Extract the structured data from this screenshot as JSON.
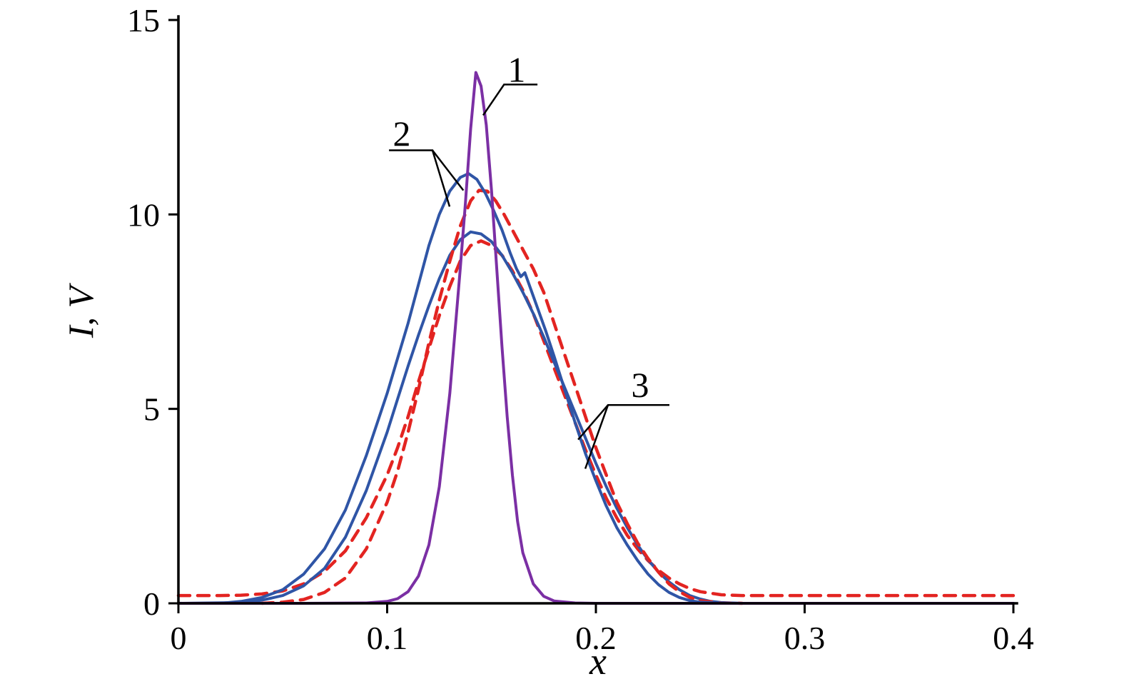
{
  "figure": {
    "background": "#ffffff",
    "axis_color": "#000000"
  },
  "chart_data": {
    "type": "line",
    "title": "",
    "xlabel": "x",
    "ylabel": "I, V",
    "xlim": [
      0,
      0.4
    ],
    "ylim": [
      0,
      15
    ],
    "xticks": [
      0,
      0.1,
      0.2,
      0.3,
      0.4
    ],
    "xtick_labels": [
      "0",
      "0.1",
      "0.2",
      "0.3",
      "0.4"
    ],
    "yticks": [
      0,
      5,
      10,
      15
    ],
    "ytick_labels": [
      "0",
      "5",
      "10",
      "15"
    ],
    "grid": false,
    "legend": "none",
    "series": [
      {
        "name": "curve-1-narrow-peak",
        "annotation_label": "1",
        "color": "#7b2fa4",
        "style": "solid",
        "width": 4,
        "points": [
          [
            0,
            0
          ],
          [
            0.06,
            0
          ],
          [
            0.09,
            0.01
          ],
          [
            0.1,
            0.05
          ],
          [
            0.105,
            0.12
          ],
          [
            0.11,
            0.3
          ],
          [
            0.115,
            0.7
          ],
          [
            0.12,
            1.5
          ],
          [
            0.125,
            3.0
          ],
          [
            0.13,
            5.4
          ],
          [
            0.135,
            8.6
          ],
          [
            0.1375,
            10.3
          ],
          [
            0.14,
            12.2
          ],
          [
            0.1425,
            13.65
          ],
          [
            0.145,
            13.3
          ],
          [
            0.1475,
            12.3
          ],
          [
            0.15,
            10.6
          ],
          [
            0.1525,
            8.6
          ],
          [
            0.155,
            6.6
          ],
          [
            0.1575,
            4.8
          ],
          [
            0.16,
            3.3
          ],
          [
            0.1625,
            2.1
          ],
          [
            0.165,
            1.3
          ],
          [
            0.17,
            0.5
          ],
          [
            0.175,
            0.18
          ],
          [
            0.18,
            0.06
          ],
          [
            0.19,
            0.01
          ],
          [
            0.2,
            0
          ],
          [
            0.4,
            0
          ]
        ]
      },
      {
        "name": "curve-2-solid-blue",
        "annotation_label": "2",
        "color": "#2f55a6",
        "style": "solid",
        "width": 4,
        "points": [
          [
            0,
            0
          ],
          [
            0.02,
            0
          ],
          [
            0.03,
            0.05
          ],
          [
            0.04,
            0.15
          ],
          [
            0.05,
            0.35
          ],
          [
            0.06,
            0.75
          ],
          [
            0.07,
            1.4
          ],
          [
            0.08,
            2.4
          ],
          [
            0.09,
            3.8
          ],
          [
            0.095,
            4.6
          ],
          [
            0.1,
            5.4
          ],
          [
            0.105,
            6.3
          ],
          [
            0.11,
            7.2
          ],
          [
            0.115,
            8.2
          ],
          [
            0.12,
            9.2
          ],
          [
            0.125,
            10.0
          ],
          [
            0.13,
            10.6
          ],
          [
            0.135,
            10.95
          ],
          [
            0.139,
            11.05
          ],
          [
            0.143,
            10.9
          ],
          [
            0.147,
            10.55
          ],
          [
            0.151,
            10.1
          ],
          [
            0.155,
            9.6
          ],
          [
            0.159,
            9.0
          ],
          [
            0.162,
            8.6
          ],
          [
            0.164,
            8.4
          ],
          [
            0.166,
            8.5
          ],
          [
            0.168,
            8.2
          ],
          [
            0.172,
            7.6
          ],
          [
            0.176,
            7.0
          ],
          [
            0.18,
            6.35
          ],
          [
            0.185,
            5.5
          ],
          [
            0.19,
            4.65
          ],
          [
            0.195,
            3.85
          ],
          [
            0.2,
            3.15
          ],
          [
            0.205,
            2.5
          ],
          [
            0.21,
            1.95
          ],
          [
            0.215,
            1.5
          ],
          [
            0.22,
            1.1
          ],
          [
            0.225,
            0.75
          ],
          [
            0.23,
            0.48
          ],
          [
            0.235,
            0.28
          ],
          [
            0.24,
            0.15
          ],
          [
            0.245,
            0.07
          ],
          [
            0.25,
            0.03
          ],
          [
            0.26,
            0.01
          ],
          [
            0.27,
            0
          ],
          [
            0.4,
            0
          ]
        ]
      },
      {
        "name": "curve-2-dashed-red",
        "annotation_label": "2",
        "color": "#e32421",
        "style": "dashed",
        "width": 4.5,
        "points": [
          [
            0.04,
            0
          ],
          [
            0.05,
            0.03
          ],
          [
            0.06,
            0.1
          ],
          [
            0.07,
            0.28
          ],
          [
            0.08,
            0.65
          ],
          [
            0.09,
            1.4
          ],
          [
            0.1,
            2.6
          ],
          [
            0.105,
            3.4
          ],
          [
            0.11,
            4.4
          ],
          [
            0.115,
            5.5
          ],
          [
            0.12,
            6.7
          ],
          [
            0.125,
            7.8
          ],
          [
            0.13,
            8.8
          ],
          [
            0.135,
            9.7
          ],
          [
            0.14,
            10.35
          ],
          [
            0.144,
            10.62
          ],
          [
            0.148,
            10.6
          ],
          [
            0.152,
            10.35
          ],
          [
            0.156,
            10.0
          ],
          [
            0.16,
            9.6
          ],
          [
            0.165,
            9.1
          ],
          [
            0.17,
            8.6
          ],
          [
            0.175,
            8.0
          ],
          [
            0.18,
            7.2
          ],
          [
            0.185,
            6.4
          ],
          [
            0.19,
            5.6
          ],
          [
            0.195,
            4.8
          ],
          [
            0.2,
            4.0
          ],
          [
            0.205,
            3.3
          ],
          [
            0.21,
            2.6
          ],
          [
            0.215,
            2.05
          ],
          [
            0.22,
            1.55
          ],
          [
            0.225,
            1.15
          ],
          [
            0.23,
            0.8
          ],
          [
            0.235,
            0.5
          ],
          [
            0.24,
            0.3
          ],
          [
            0.245,
            0.15
          ],
          [
            0.25,
            0.07
          ],
          [
            0.26,
            0.01
          ],
          [
            0.27,
            0
          ]
        ]
      },
      {
        "name": "curve-3-solid-blue",
        "annotation_label": "3",
        "color": "#2f55a6",
        "style": "solid",
        "width": 4,
        "points": [
          [
            0,
            0
          ],
          [
            0.03,
            0.02
          ],
          [
            0.04,
            0.08
          ],
          [
            0.05,
            0.2
          ],
          [
            0.06,
            0.45
          ],
          [
            0.07,
            0.9
          ],
          [
            0.08,
            1.7
          ],
          [
            0.09,
            2.9
          ],
          [
            0.1,
            4.4
          ],
          [
            0.105,
            5.25
          ],
          [
            0.11,
            6.1
          ],
          [
            0.115,
            6.9
          ],
          [
            0.12,
            7.65
          ],
          [
            0.125,
            8.35
          ],
          [
            0.13,
            8.95
          ],
          [
            0.135,
            9.35
          ],
          [
            0.14,
            9.55
          ],
          [
            0.145,
            9.5
          ],
          [
            0.15,
            9.3
          ],
          [
            0.155,
            8.95
          ],
          [
            0.16,
            8.5
          ],
          [
            0.165,
            8.0
          ],
          [
            0.17,
            7.45
          ],
          [
            0.175,
            6.85
          ],
          [
            0.18,
            6.2
          ],
          [
            0.185,
            5.55
          ],
          [
            0.19,
            4.9
          ],
          [
            0.195,
            4.25
          ],
          [
            0.2,
            3.6
          ],
          [
            0.205,
            3.0
          ],
          [
            0.21,
            2.45
          ],
          [
            0.215,
            1.95
          ],
          [
            0.22,
            1.5
          ],
          [
            0.225,
            1.12
          ],
          [
            0.23,
            0.8
          ],
          [
            0.235,
            0.55
          ],
          [
            0.24,
            0.35
          ],
          [
            0.245,
            0.2
          ],
          [
            0.25,
            0.11
          ],
          [
            0.255,
            0.05
          ],
          [
            0.26,
            0.02
          ],
          [
            0.27,
            0
          ],
          [
            0.4,
            0
          ]
        ]
      },
      {
        "name": "curve-3-dashed-red",
        "annotation_label": "3",
        "color": "#e32421",
        "style": "dashed",
        "width": 4.5,
        "points": [
          [
            0,
            0.2
          ],
          [
            0.02,
            0.2
          ],
          [
            0.03,
            0.21
          ],
          [
            0.04,
            0.24
          ],
          [
            0.05,
            0.32
          ],
          [
            0.06,
            0.5
          ],
          [
            0.07,
            0.82
          ],
          [
            0.08,
            1.35
          ],
          [
            0.09,
            2.2
          ],
          [
            0.1,
            3.3
          ],
          [
            0.105,
            4.0
          ],
          [
            0.11,
            4.8
          ],
          [
            0.115,
            5.7
          ],
          [
            0.12,
            6.55
          ],
          [
            0.125,
            7.4
          ],
          [
            0.13,
            8.15
          ],
          [
            0.135,
            8.8
          ],
          [
            0.14,
            9.2
          ],
          [
            0.145,
            9.32
          ],
          [
            0.15,
            9.2
          ],
          [
            0.155,
            8.95
          ],
          [
            0.16,
            8.55
          ],
          [
            0.165,
            8.05
          ],
          [
            0.17,
            7.45
          ],
          [
            0.175,
            6.75
          ],
          [
            0.18,
            6.05
          ],
          [
            0.185,
            5.35
          ],
          [
            0.19,
            4.65
          ],
          [
            0.195,
            3.95
          ],
          [
            0.2,
            3.3
          ],
          [
            0.205,
            2.7
          ],
          [
            0.21,
            2.2
          ],
          [
            0.215,
            1.75
          ],
          [
            0.22,
            1.4
          ],
          [
            0.225,
            1.1
          ],
          [
            0.23,
            0.85
          ],
          [
            0.235,
            0.65
          ],
          [
            0.24,
            0.5
          ],
          [
            0.245,
            0.38
          ],
          [
            0.25,
            0.3
          ],
          [
            0.26,
            0.22
          ],
          [
            0.27,
            0.2
          ],
          [
            0.3,
            0.2
          ],
          [
            0.33,
            0.2
          ],
          [
            0.36,
            0.2
          ],
          [
            0.4,
            0.2
          ]
        ]
      }
    ],
    "annotations": [
      {
        "label": "1",
        "text_xy": [
          0.162,
          13.72
        ],
        "leader_lines": [
          [
            [
              0.172,
              13.34
            ],
            [
              0.156,
              13.34
            ],
            [
              0.146,
              12.55
            ]
          ]
        ]
      },
      {
        "label": "2",
        "text_xy": [
          0.107,
          12.08
        ],
        "leader_lines": [
          [
            [
              0.1009,
              11.65
            ],
            [
              0.1217,
              11.65
            ],
            [
              0.1299,
              10.2
            ]
          ],
          [
            [
              0.1217,
              11.65
            ],
            [
              0.1365,
              10.62
            ]
          ]
        ]
      },
      {
        "label": "3",
        "text_xy": [
          0.2212,
          5.62
        ],
        "leader_lines": [
          [
            [
              0.2352,
              5.1
            ],
            [
              0.2058,
              5.1
            ],
            [
              0.1915,
              4.21
            ]
          ],
          [
            [
              0.2058,
              5.1
            ],
            [
              0.1949,
              3.46
            ]
          ]
        ]
      }
    ]
  }
}
